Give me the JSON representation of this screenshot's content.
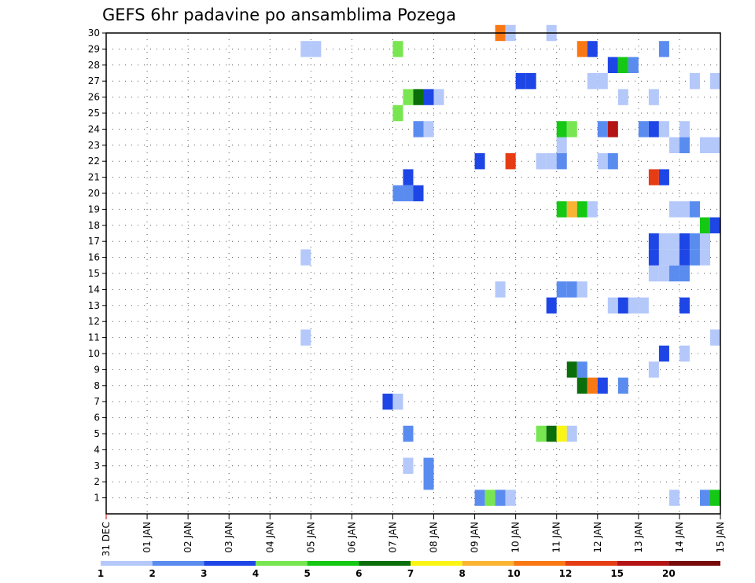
{
  "chart_data": {
    "type": "heatmap",
    "title": "GEFS 6hr padavine po ansamblima Pozega",
    "xlabel": "",
    "ylabel": "",
    "x_ticks": [
      "31 DEC",
      "01 JAN",
      "02 JAN",
      "03 JAN",
      "04 JAN",
      "05 JAN",
      "06 JAN",
      "07 JAN",
      "08 JAN",
      "09 JAN",
      "10 JAN",
      "11 JAN",
      "12 JAN",
      "13 JAN",
      "14 JAN",
      "15 JAN"
    ],
    "y_ticks": [
      "1",
      "2",
      "3",
      "4",
      "5",
      "6",
      "7",
      "8",
      "9",
      "10",
      "11",
      "12",
      "13",
      "14",
      "15",
      "16",
      "17",
      "18",
      "19",
      "20",
      "21",
      "22",
      "23",
      "24",
      "25",
      "26",
      "27",
      "28",
      "29",
      "30"
    ],
    "xlim": [
      0,
      15
    ],
    "ylim": [
      0,
      30
    ],
    "grid": true,
    "colorbar": {
      "boundaries": [
        1,
        2,
        3,
        4,
        5,
        6,
        7,
        8,
        10,
        12,
        15,
        20
      ],
      "labels": [
        "1",
        "2",
        "3",
        "4",
        "5",
        "6",
        "7",
        "8",
        "10",
        "12",
        "15",
        "20"
      ],
      "colors": [
        "#b4c8fa",
        "#5a8cf0",
        "#1e46e6",
        "#78e650",
        "#14c814",
        "#0a6e0a",
        "#faf514",
        "#fab432",
        "#fa7814",
        "#e63c14",
        "#b41414",
        "#780a0a"
      ]
    },
    "cells": [
      {
        "member": 1,
        "day": 9.0,
        "value": 2.5
      },
      {
        "member": 1,
        "day": 9.25,
        "value": 4.5
      },
      {
        "member": 1,
        "day": 9.5,
        "value": 2.5
      },
      {
        "member": 1,
        "day": 9.75,
        "value": 1.5
      },
      {
        "member": 1,
        "day": 13.75,
        "value": 1.5
      },
      {
        "member": 1,
        "day": 14.5,
        "value": 2.5
      },
      {
        "member": 1,
        "day": 14.75,
        "value": 5.5
      },
      {
        "member": 2,
        "day": 7.75,
        "value": 2.5
      },
      {
        "member": 3,
        "day": 7.25,
        "value": 1.5
      },
      {
        "member": 3,
        "day": 7.75,
        "value": 2.5
      },
      {
        "member": 5,
        "day": 7.25,
        "value": 2.5
      },
      {
        "member": 5,
        "day": 10.5,
        "value": 4.5
      },
      {
        "member": 5,
        "day": 10.75,
        "value": 6.5
      },
      {
        "member": 5,
        "day": 11.0,
        "value": 7.5
      },
      {
        "member": 5,
        "day": 11.25,
        "value": 1.5
      },
      {
        "member": 7,
        "day": 6.75,
        "value": 3.5
      },
      {
        "member": 7,
        "day": 7.0,
        "value": 1.5
      },
      {
        "member": 8,
        "day": 11.5,
        "value": 6.5
      },
      {
        "member": 8,
        "day": 11.75,
        "value": 11.0
      },
      {
        "member": 8,
        "day": 12.0,
        "value": 3.5
      },
      {
        "member": 8,
        "day": 12.5,
        "value": 2.5
      },
      {
        "member": 9,
        "day": 11.25,
        "value": 6.5
      },
      {
        "member": 9,
        "day": 11.5,
        "value": 2.5
      },
      {
        "member": 9,
        "day": 13.25,
        "value": 1.5
      },
      {
        "member": 10,
        "day": 13.5,
        "value": 3.5
      },
      {
        "member": 10,
        "day": 14.0,
        "value": 1.5
      },
      {
        "member": 11,
        "day": 4.75,
        "value": 1.5
      },
      {
        "member": 11,
        "day": 14.75,
        "value": 1.5
      },
      {
        "member": 13,
        "day": 10.75,
        "value": 3.5
      },
      {
        "member": 13,
        "day": 12.25,
        "value": 1.5
      },
      {
        "member": 13,
        "day": 12.5,
        "value": 3.5
      },
      {
        "member": 13,
        "day": 12.75,
        "value": 1.5
      },
      {
        "member": 13,
        "day": 13.0,
        "value": 1.5
      },
      {
        "member": 13,
        "day": 14.0,
        "value": 3.5
      },
      {
        "member": 14,
        "day": 9.5,
        "value": 1.5
      },
      {
        "member": 14,
        "day": 11.0,
        "value": 2.5
      },
      {
        "member": 14,
        "day": 11.25,
        "value": 2.5
      },
      {
        "member": 14,
        "day": 11.5,
        "value": 1.5
      },
      {
        "member": 15,
        "day": 13.25,
        "value": 1.5
      },
      {
        "member": 15,
        "day": 13.5,
        "value": 1.5
      },
      {
        "member": 15,
        "day": 13.75,
        "value": 2.5
      },
      {
        "member": 15,
        "day": 14.0,
        "value": 2.5
      },
      {
        "member": 16,
        "day": 4.75,
        "value": 1.5
      },
      {
        "member": 16,
        "day": 13.25,
        "value": 3.5
      },
      {
        "member": 16,
        "day": 13.5,
        "value": 1.5
      },
      {
        "member": 16,
        "day": 13.75,
        "value": 1.5
      },
      {
        "member": 16,
        "day": 14.0,
        "value": 3.5
      },
      {
        "member": 16,
        "day": 14.25,
        "value": 2.5
      },
      {
        "member": 16,
        "day": 14.5,
        "value": 1.5
      },
      {
        "member": 17,
        "day": 13.25,
        "value": 3.5
      },
      {
        "member": 17,
        "day": 13.5,
        "value": 1.5
      },
      {
        "member": 17,
        "day": 13.75,
        "value": 1.5
      },
      {
        "member": 17,
        "day": 14.0,
        "value": 3.5
      },
      {
        "member": 17,
        "day": 14.25,
        "value": 2.5
      },
      {
        "member": 17,
        "day": 14.5,
        "value": 1.5
      },
      {
        "member": 18,
        "day": 14.5,
        "value": 5.5
      },
      {
        "member": 18,
        "day": 14.75,
        "value": 3.5
      },
      {
        "member": 19,
        "day": 11.0,
        "value": 5.5
      },
      {
        "member": 19,
        "day": 11.25,
        "value": 9.0
      },
      {
        "member": 19,
        "day": 11.5,
        "value": 5.5
      },
      {
        "member": 19,
        "day": 11.75,
        "value": 1.5
      },
      {
        "member": 19,
        "day": 13.75,
        "value": 1.5
      },
      {
        "member": 19,
        "day": 14.0,
        "value": 1.5
      },
      {
        "member": 19,
        "day": 14.25,
        "value": 2.5
      },
      {
        "member": 20,
        "day": 7.0,
        "value": 2.5
      },
      {
        "member": 20,
        "day": 7.25,
        "value": 2.5
      },
      {
        "member": 20,
        "day": 7.5,
        "value": 3.5
      },
      {
        "member": 21,
        "day": 7.25,
        "value": 3.5
      },
      {
        "member": 21,
        "day": 13.25,
        "value": 13.5
      },
      {
        "member": 21,
        "day": 13.5,
        "value": 3.5
      },
      {
        "member": 22,
        "day": 9.0,
        "value": 3.5
      },
      {
        "member": 22,
        "day": 9.75,
        "value": 13.5
      },
      {
        "member": 22,
        "day": 10.5,
        "value": 1.5
      },
      {
        "member": 22,
        "day": 10.75,
        "value": 1.5
      },
      {
        "member": 22,
        "day": 11.0,
        "value": 2.5
      },
      {
        "member": 22,
        "day": 12.0,
        "value": 1.5
      },
      {
        "member": 22,
        "day": 12.25,
        "value": 2.5
      },
      {
        "member": 23,
        "day": 11.0,
        "value": 1.5
      },
      {
        "member": 23,
        "day": 13.75,
        "value": 1.5
      },
      {
        "member": 23,
        "day": 14.0,
        "value": 2.5
      },
      {
        "member": 23,
        "day": 14.5,
        "value": 1.5
      },
      {
        "member": 23,
        "day": 14.75,
        "value": 1.5
      },
      {
        "member": 24,
        "day": 7.5,
        "value": 2.5
      },
      {
        "member": 24,
        "day": 7.75,
        "value": 1.5
      },
      {
        "member": 24,
        "day": 11.0,
        "value": 5.5
      },
      {
        "member": 24,
        "day": 11.25,
        "value": 4.5
      },
      {
        "member": 24,
        "day": 12.0,
        "value": 2.5
      },
      {
        "member": 24,
        "day": 12.25,
        "value": 17.5
      },
      {
        "member": 24,
        "day": 13.0,
        "value": 2.5
      },
      {
        "member": 24,
        "day": 13.25,
        "value": 3.5
      },
      {
        "member": 24,
        "day": 13.5,
        "value": 1.5
      },
      {
        "member": 24,
        "day": 14.0,
        "value": 1.5
      },
      {
        "member": 25,
        "day": 7.0,
        "value": 4.5
      },
      {
        "member": 26,
        "day": 7.25,
        "value": 4.5
      },
      {
        "member": 26,
        "day": 7.5,
        "value": 6.5
      },
      {
        "member": 26,
        "day": 7.75,
        "value": 3.5
      },
      {
        "member": 26,
        "day": 8.0,
        "value": 1.5
      },
      {
        "member": 26,
        "day": 12.5,
        "value": 1.5
      },
      {
        "member": 26,
        "day": 13.25,
        "value": 1.5
      },
      {
        "member": 27,
        "day": 10.0,
        "value": 3.5
      },
      {
        "member": 27,
        "day": 10.25,
        "value": 3.5
      },
      {
        "member": 27,
        "day": 11.75,
        "value": 1.5
      },
      {
        "member": 27,
        "day": 12.0,
        "value": 1.5
      },
      {
        "member": 27,
        "day": 14.25,
        "value": 1.5
      },
      {
        "member": 27,
        "day": 14.75,
        "value": 1.5
      },
      {
        "member": 28,
        "day": 12.25,
        "value": 3.5
      },
      {
        "member": 28,
        "day": 12.5,
        "value": 5.5
      },
      {
        "member": 28,
        "day": 12.75,
        "value": 2.5
      },
      {
        "member": 29,
        "day": 4.75,
        "value": 1.5
      },
      {
        "member": 29,
        "day": 5.0,
        "value": 1.5
      },
      {
        "member": 29,
        "day": 7.0,
        "value": 4.5
      },
      {
        "member": 29,
        "day": 11.5,
        "value": 11.0
      },
      {
        "member": 29,
        "day": 11.75,
        "value": 3.5
      },
      {
        "member": 29,
        "day": 13.5,
        "value": 2.5
      },
      {
        "member": 30,
        "day": 9.5,
        "value": 11.0
      },
      {
        "member": 30,
        "day": 9.75,
        "value": 1.5
      },
      {
        "member": 30,
        "day": 10.75,
        "value": 1.5
      }
    ]
  }
}
